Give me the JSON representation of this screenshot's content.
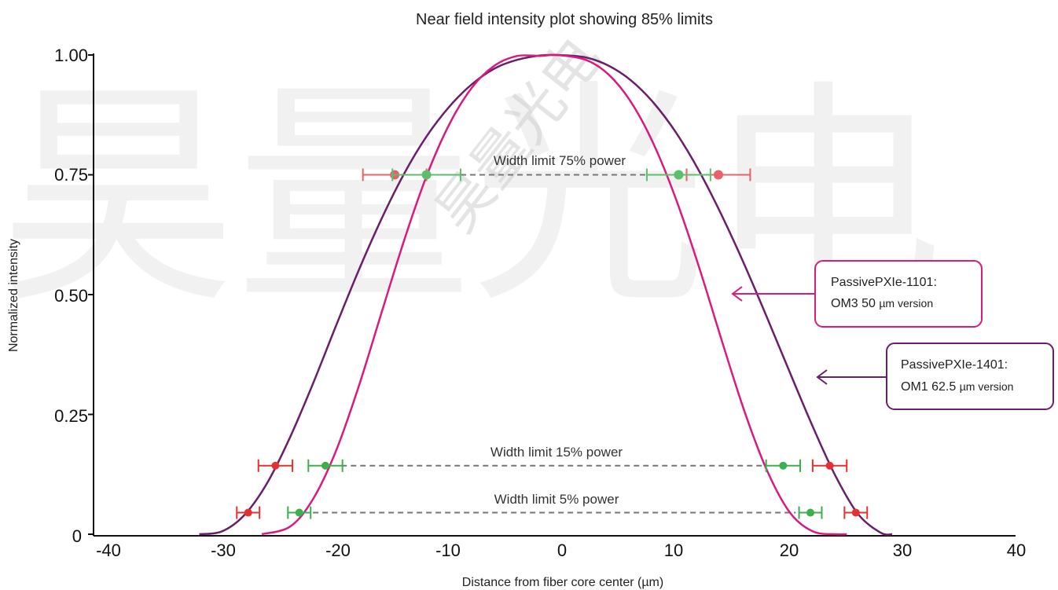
{
  "chart_data": {
    "type": "line",
    "title": "Near field intensity plot showing 85% limits",
    "xlabel": "Distance from fiber core center (µm)",
    "ylabel": "Normalized intensity",
    "xlim": [
      -40,
      40
    ],
    "ylim": [
      0,
      1
    ],
    "x_ticks": [
      -40,
      -30,
      -20,
      -10,
      0,
      10,
      20,
      30,
      40
    ],
    "x_tick_labels": [
      "-40",
      "-30",
      "-20",
      "-10",
      "0",
      "10",
      "20",
      "30",
      "40"
    ],
    "y_ticks": [
      0,
      0.25,
      0.5,
      0.75,
      1.0
    ],
    "y_tick_labels": [
      "0",
      "0.25",
      "0.50",
      "0.75",
      "1.00"
    ],
    "series": [
      {
        "name": "PassivePXIe-1401: OM1 62.5 µm version",
        "label_line1": "PassivePXIe-1401:",
        "label_line2a": "OM1 62.5 ",
        "label_line2b": "µm version",
        "color": "#6b1f6b",
        "x": [
          -32,
          -30,
          -28,
          -26,
          -24,
          -22,
          -20,
          -18,
          -16,
          -14,
          -12,
          -10,
          -8,
          -6,
          -4,
          -2,
          -0.5,
          2,
          4,
          6,
          8,
          10,
          12,
          14,
          16,
          18,
          20,
          22,
          24,
          26,
          28,
          29
        ],
        "y": [
          0.0,
          0.006,
          0.041,
          0.108,
          0.203,
          0.314,
          0.433,
          0.549,
          0.656,
          0.751,
          0.83,
          0.892,
          0.939,
          0.972,
          0.99,
          0.999,
          1.0,
          0.995,
          0.978,
          0.947,
          0.9,
          0.837,
          0.758,
          0.665,
          0.562,
          0.451,
          0.337,
          0.225,
          0.122,
          0.042,
          0.003,
          0.0
        ]
      },
      {
        "name": "PassivePXIe-1101: OM3 50 µm version",
        "label_line1": "PassivePXIe-1101:",
        "label_line2a": "OM3 50 ",
        "label_line2b": "µm version",
        "color": "#d81b7f",
        "x": [
          -26.5,
          -24,
          -22,
          -20,
          -18,
          -16,
          -14,
          -12,
          -10,
          -8,
          -6,
          -4,
          -2,
          -0.5,
          2,
          4,
          6,
          8,
          10,
          12,
          14,
          16,
          18,
          20,
          22,
          24,
          25
        ],
        "y": [
          0.0,
          0.016,
          0.073,
          0.172,
          0.306,
          0.459,
          0.611,
          0.747,
          0.855,
          0.932,
          0.978,
          0.998,
          0.998,
          1.0,
          0.99,
          0.96,
          0.902,
          0.814,
          0.697,
          0.557,
          0.404,
          0.256,
          0.132,
          0.045,
          0.006,
          0.0,
          0.0
        ]
      }
    ],
    "annotations": [
      {
        "text": "Width limit 75% power",
        "y": 0.75,
        "x_from": -9,
        "x_to": 7.5
      },
      {
        "text": "Width limit 15% power",
        "y": 0.143,
        "x_from": -19.5,
        "x_to": 17.8
      },
      {
        "text": "Width limit 5% power",
        "y": 0.045,
        "x_from": -22,
        "x_to": 20.5
      }
    ],
    "limit_markers": [
      {
        "level": 0.75,
        "x": -14.8,
        "err": 2.8,
        "color": "#e8606a"
      },
      {
        "level": 0.75,
        "x": 13.7,
        "err": 2.8,
        "color": "#e8606a"
      },
      {
        "level": 0.75,
        "x": -12.0,
        "err": 3.0,
        "color": "#5cbf6a"
      },
      {
        "level": 0.75,
        "x": 10.2,
        "err": 2.8,
        "color": "#5cbf6a"
      },
      {
        "level": 0.143,
        "x": -25.3,
        "err": 1.5,
        "color": "#e53030"
      },
      {
        "level": 0.143,
        "x": 23.5,
        "err": 1.5,
        "color": "#e53030"
      },
      {
        "level": 0.143,
        "x": -20.9,
        "err": 1.5,
        "color": "#3cb04c"
      },
      {
        "level": 0.143,
        "x": 19.4,
        "err": 1.5,
        "color": "#3cb04c"
      },
      {
        "level": 0.045,
        "x": -27.7,
        "err": 1.0,
        "color": "#e53030"
      },
      {
        "level": 0.045,
        "x": 25.8,
        "err": 1.0,
        "color": "#e53030"
      },
      {
        "level": 0.045,
        "x": -23.2,
        "err": 1.0,
        "color": "#3cb04c"
      },
      {
        "level": 0.045,
        "x": 21.8,
        "err": 1.0,
        "color": "#3cb04c"
      }
    ],
    "grid": false,
    "legend": "callout boxes on right"
  },
  "watermark": {
    "large": "昊量光电",
    "small": "昊量光电"
  }
}
